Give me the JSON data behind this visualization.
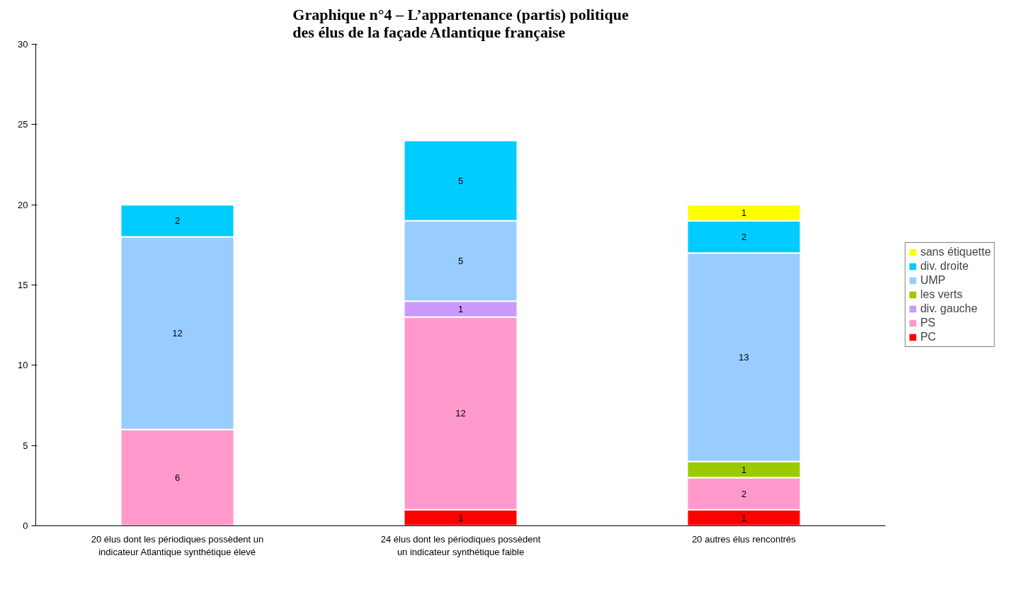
{
  "chart_data": {
    "type": "bar",
    "title": "Graphique n°4 – L’appartenance (partis) politique des élus de la façade Atlantique française",
    "categories": [
      "20 élus dont les périodiques possèdent un indicateur Atlantique synthétique élevé",
      "24 élus dont les périodiques possèdent un indicateur synthétique faible",
      "20 autres élus rencontrés"
    ],
    "stacked": true,
    "data_labels": true,
    "legend": "right",
    "grid": false,
    "ylim": [
      0,
      30
    ],
    "yticks": [
      0,
      5,
      10,
      15,
      20,
      25,
      30
    ],
    "series": [
      {
        "name": "PC",
        "color": "#ff0000",
        "values": [
          null,
          1,
          1
        ]
      },
      {
        "name": "PS",
        "color": "#ff99cc",
        "values": [
          6,
          12,
          2
        ]
      },
      {
        "name": "div. gauche",
        "color": "#cc99ff",
        "values": [
          null,
          1,
          null
        ]
      },
      {
        "name": "les verts",
        "color": "#99cc00",
        "values": [
          null,
          null,
          1
        ]
      },
      {
        "name": "UMP",
        "color": "#99ccff",
        "values": [
          12,
          5,
          13
        ]
      },
      {
        "name": "div. droite",
        "color": "#00ccff",
        "values": [
          2,
          5,
          2
        ]
      },
      {
        "name": "sans étiquette",
        "color": "#ffff00",
        "values": [
          null,
          null,
          1
        ]
      }
    ]
  }
}
